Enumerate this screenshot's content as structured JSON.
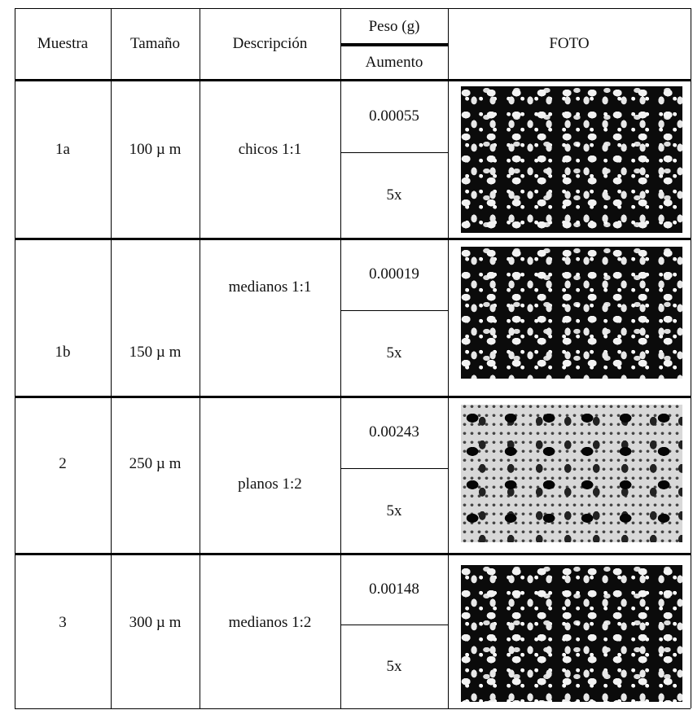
{
  "table": {
    "header": {
      "muestra": "Muestra",
      "tamano": "Tamaño",
      "descripcion": "Descripción",
      "peso": "Peso (g)",
      "aumento": "Aumento",
      "foto": "FOTO"
    },
    "rows": [
      {
        "muestra": "1a",
        "tamano": "100 µ m",
        "descripcion": "chicos 1:1",
        "peso": "0.00055",
        "aumento": "5x"
      },
      {
        "muestra": "1b",
        "tamano": "150 µ m",
        "descripcion": "medianos 1:1",
        "peso": "0.00019",
        "aumento": "5x"
      },
      {
        "muestra": "2",
        "tamano": "250 µ m",
        "descripcion": "planos 1:2",
        "peso": "0.00243",
        "aumento": "5x"
      },
      {
        "muestra": "3",
        "tamano": "300 µ m",
        "descripcion": "medianos 1:2",
        "peso": "0.00148",
        "aumento": "5x"
      }
    ]
  }
}
